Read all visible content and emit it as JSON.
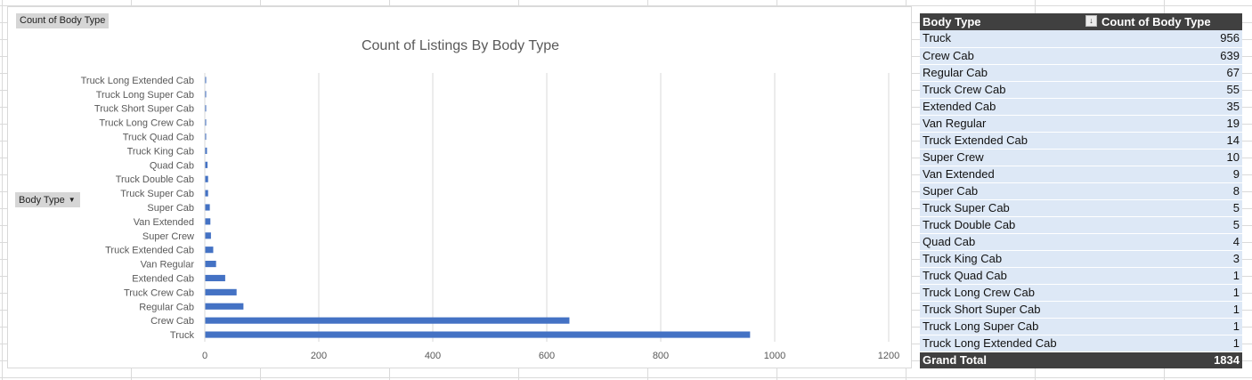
{
  "chart_data": {
    "type": "bar",
    "orientation": "horizontal",
    "title": "Count of Listings By Body Type",
    "categories": [
      "Truck",
      "Crew Cab",
      "Regular Cab",
      "Truck Crew Cab",
      "Extended Cab",
      "Van Regular",
      "Truck Extended Cab",
      "Super Crew",
      "Van Extended",
      "Super Cab",
      "Truck Super Cab",
      "Truck Double Cab",
      "Quad Cab",
      "Truck King Cab",
      "Truck Quad Cab",
      "Truck Long Crew Cab",
      "Truck Short Super Cab",
      "Truck Long Super Cab",
      "Truck Long Extended Cab"
    ],
    "values": [
      956,
      639,
      67,
      55,
      35,
      19,
      14,
      10,
      9,
      8,
      5,
      5,
      4,
      3,
      1,
      1,
      1,
      1,
      1
    ],
    "xlim": [
      0,
      1200
    ],
    "x_ticks": [
      0,
      200,
      400,
      600,
      800,
      1000,
      1200
    ],
    "grid": true,
    "bar_color": "#4472c4"
  },
  "chart_buttons": {
    "values_field": "Count of Body Type",
    "axis_field": "Body Type"
  },
  "pivot": {
    "header": [
      "Body Type",
      "Count of Body Type"
    ],
    "rows": [
      {
        "label": "Truck",
        "count": 956
      },
      {
        "label": "Crew Cab",
        "count": 639
      },
      {
        "label": "Regular Cab",
        "count": 67
      },
      {
        "label": "Truck Crew Cab",
        "count": 55
      },
      {
        "label": "Extended Cab",
        "count": 35
      },
      {
        "label": "Van Regular",
        "count": 19
      },
      {
        "label": "Truck Extended Cab",
        "count": 14
      },
      {
        "label": "Super Crew",
        "count": 10
      },
      {
        "label": "Van Extended",
        "count": 9
      },
      {
        "label": "Super Cab",
        "count": 8
      },
      {
        "label": "Truck Super Cab",
        "count": 5
      },
      {
        "label": "Truck Double Cab",
        "count": 5
      },
      {
        "label": "Quad Cab",
        "count": 4
      },
      {
        "label": "Truck King Cab",
        "count": 3
      },
      {
        "label": "Truck Quad Cab",
        "count": 1
      },
      {
        "label": "Truck Long Crew Cab",
        "count": 1
      },
      {
        "label": "Truck Short Super Cab",
        "count": 1
      },
      {
        "label": "Truck Long Super Cab",
        "count": 1
      },
      {
        "label": "Truck Long Extended Cab",
        "count": 1
      }
    ],
    "grand_total_label": "Grand Total",
    "grand_total": 1834,
    "header_color": "#404040",
    "row_color": "#dde8f6"
  },
  "icons": {
    "dropdown": "dropdown-arrow-icon",
    "sort": "sort-descending-icon"
  }
}
